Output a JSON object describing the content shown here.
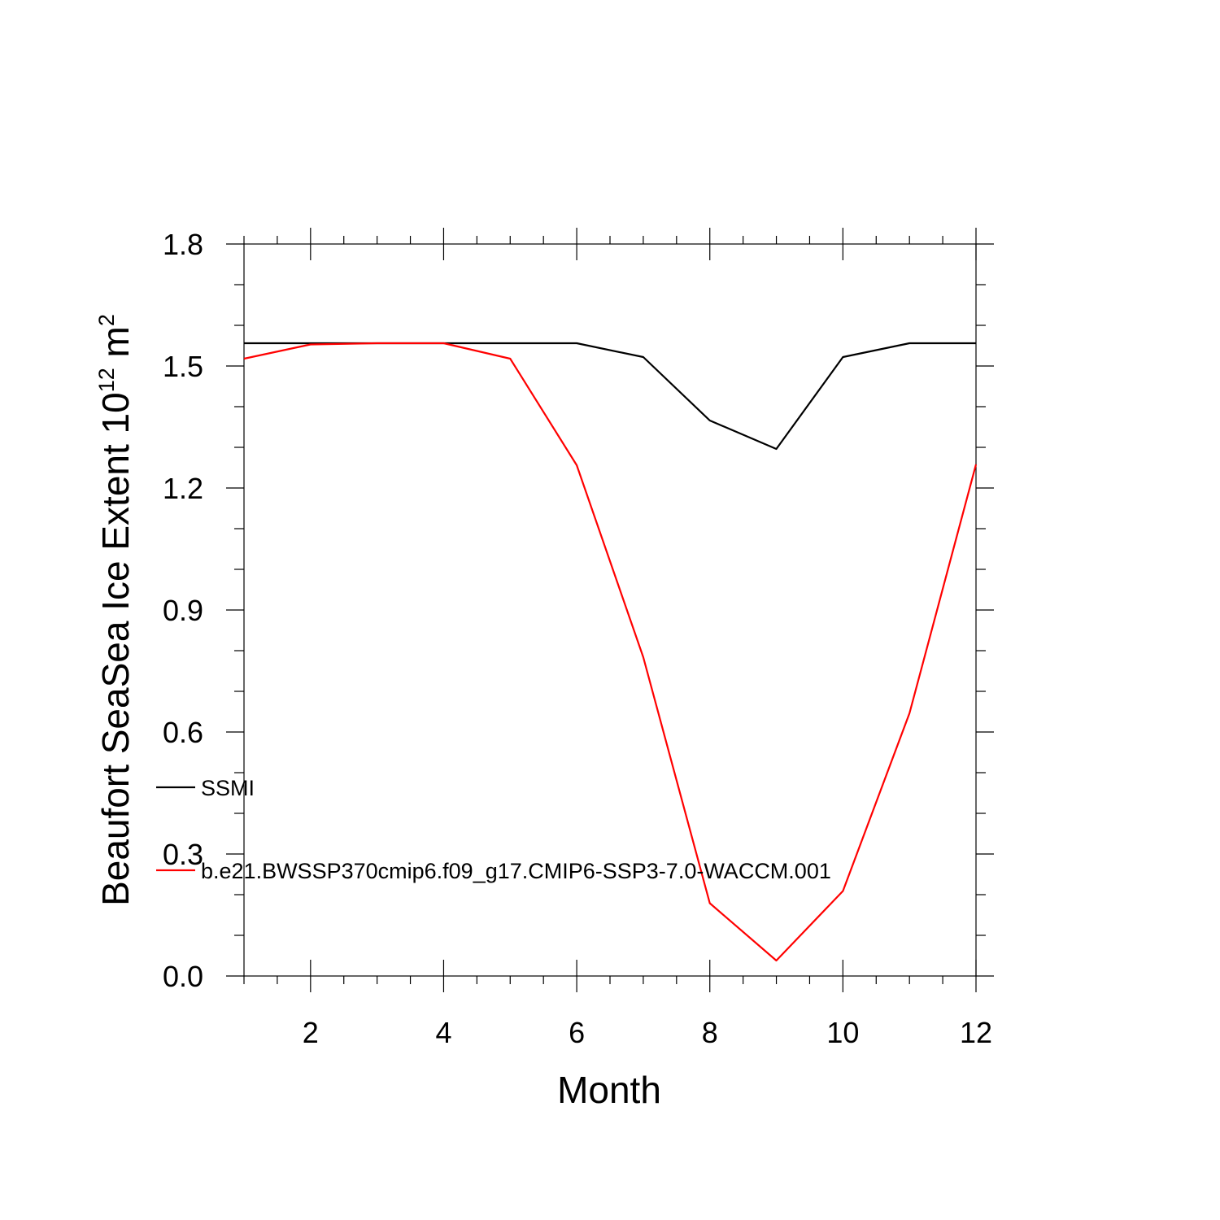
{
  "chart_data": {
    "type": "line",
    "xlabel": "Month",
    "ylabel": {
      "text": "Beaufort SeaSea Ice Extent 10",
      "superscript": "12",
      "unit": " m",
      "unit_superscript": "2"
    },
    "xlim": [
      1,
      12
    ],
    "ylim": [
      0.0,
      1.8
    ],
    "x_ticks": [
      2,
      4,
      6,
      8,
      10,
      12
    ],
    "x_tick_labels": [
      "2",
      "4",
      "6",
      "8",
      "10",
      "12"
    ],
    "y_ticks": [
      0.0,
      0.3,
      0.6,
      0.9,
      1.2,
      1.5,
      1.8
    ],
    "y_tick_labels": [
      "0.0",
      "0.3",
      "0.6",
      "0.9",
      "1.2",
      "1.5",
      "1.8"
    ],
    "grid": false,
    "legend_placement": "inside-left",
    "x": [
      1,
      2,
      3,
      4,
      5,
      6,
      7,
      8,
      9,
      10,
      11,
      12
    ],
    "series": [
      {
        "name": "SSMI",
        "color": "#000000",
        "values": [
          1.556,
          1.556,
          1.556,
          1.556,
          1.556,
          1.556,
          1.522,
          1.366,
          1.296,
          1.522,
          1.556,
          1.556
        ]
      },
      {
        "name": "b.e21.BWSSP370cmip6.f09_g17.CMIP6-SSP3-7.0-WACCM.001",
        "color": "#ff0000",
        "values": [
          1.518,
          1.553,
          1.556,
          1.556,
          1.518,
          1.256,
          0.784,
          0.179,
          0.038,
          0.209,
          0.646,
          1.258
        ]
      }
    ]
  }
}
